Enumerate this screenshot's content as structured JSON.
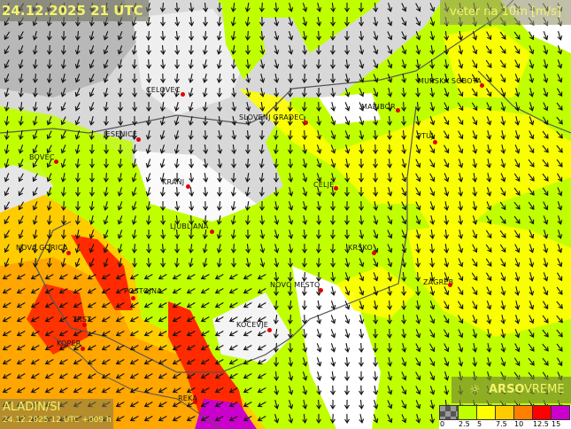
{
  "header": {
    "valid_time": "24.12.2025 21 UTC",
    "parameter": "veter na 10m [m/s]"
  },
  "model": {
    "name": "ALADIN/SI",
    "run": "24.12.2025 12 UTC +009 h"
  },
  "logo": {
    "icon": "sun-icon",
    "brand": "ARSO",
    "suffix": "VREME"
  },
  "legend": {
    "ticks": [
      "0",
      "2.5",
      "5",
      "7.5",
      "10",
      "12.5",
      "15"
    ],
    "colors": [
      "#9a9a9a",
      "#c0ff00",
      "#ffff00",
      "#ffcc00",
      "#ff7f00",
      "#ff0000",
      "#cc00cc"
    ]
  },
  "cities": [
    "CELOVEC",
    "SLOVENJ GRADEC",
    "MARIBOR",
    "MURSKA SOBOTA",
    "PTUJ",
    "JESENICE",
    "BOVEC",
    "KRANJ",
    "CELJE",
    "LJUBLJANA",
    "NOVA GORICA",
    "KRŠKO",
    "ZAGREB",
    "NOVO MESTO",
    "POSTOJNA",
    "KOČEVJE",
    "TRST",
    "KOPER",
    "REKA"
  ],
  "colors": {
    "calm": "#ffffff",
    "low": "#c0ff00",
    "moderate": "#ffff00",
    "strong": "#ff7f00",
    "very_strong": "#ff0000"
  }
}
